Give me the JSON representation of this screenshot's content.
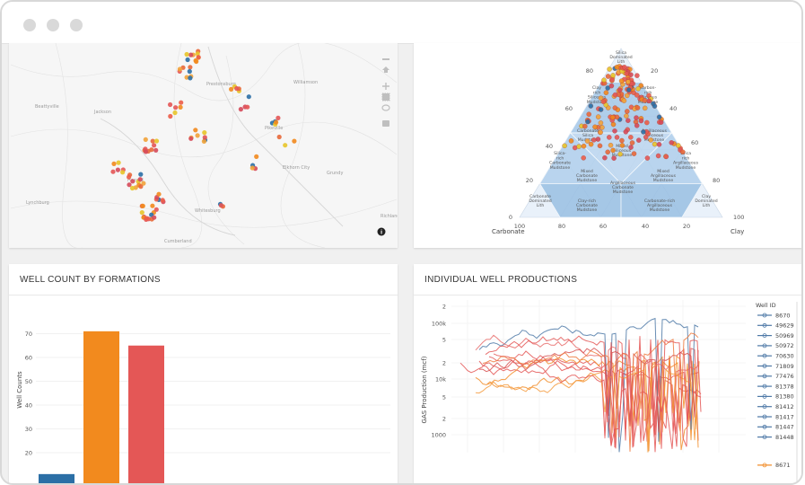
{
  "window": {
    "title": ""
  },
  "map": {
    "places": [
      {
        "name": "Prestonsburg",
        "x": 228,
        "y": 93
      },
      {
        "name": "Williamson",
        "x": 325,
        "y": 91
      },
      {
        "name": "Beattyville",
        "x": 37,
        "y": 118
      },
      {
        "name": "Jackson",
        "x": 103,
        "y": 124
      },
      {
        "name": "Pikeville",
        "x": 293,
        "y": 142
      },
      {
        "name": "Hazard",
        "x": 140,
        "y": 200
      },
      {
        "name": "Elkhorn City",
        "x": 313,
        "y": 186
      },
      {
        "name": "Grundy",
        "x": 362,
        "y": 192
      },
      {
        "name": "Whitesburg",
        "x": 215,
        "y": 234
      },
      {
        "name": "Richlands",
        "x": 422,
        "y": 240
      },
      {
        "name": "Lynchburg",
        "x": 27,
        "y": 225
      },
      {
        "name": "Cumberland",
        "x": 181,
        "y": 268
      }
    ],
    "toolbar_icons": [
      "camera-icon",
      "zoom-in-icon",
      "zoom-out-icon",
      "home-icon",
      "pan-icon",
      "box-select-icon",
      "lasso-icon"
    ],
    "info_icon": "info-icon"
  },
  "ternary": {
    "corner_top": "Silica\nDominated\nLith",
    "corner_left": "Carbonate",
    "corner_right": "Clay",
    "left_ticks": [
      "80",
      "60",
      "40",
      "20",
      "0"
    ],
    "right_ticks": [
      "20",
      "40",
      "60",
      "80",
      "100"
    ],
    "bottom_ticks": [
      "100",
      "80",
      "60",
      "40",
      "20"
    ],
    "regions": [
      {
        "text": "Silica\nDominated\nLith",
        "x": 690,
        "y": 63
      },
      {
        "text": "Clay\nrich\nSiliceous\nMudstone",
        "x": 663,
        "y": 105
      },
      {
        "text": "Carbon-\nrich\nSiliceous\nMudstone",
        "x": 720,
        "y": 105
      },
      {
        "text": "Carbonate\nSilica\nMudstone",
        "x": 653,
        "y": 150
      },
      {
        "text": "Argillaceous\nSiliceous\nMudstone",
        "x": 727,
        "y": 150
      },
      {
        "text": "Mixed\nSiliceous\nMudstone",
        "x": 691,
        "y": 167
      },
      {
        "text": "Silica-\nrich\nCarbonate\nMudstone",
        "x": 622,
        "y": 178
      },
      {
        "text": "Silica\nrich\nArgillaceous\nMudstone",
        "x": 762,
        "y": 178
      },
      {
        "text": "Mixed\nCarbonate\nMudstone",
        "x": 652,
        "y": 195
      },
      {
        "text": "Mixed\nArgillaceous\nMudstone",
        "x": 737,
        "y": 195
      },
      {
        "text": "Argillaceous\nCarbonate\nMudstone",
        "x": 692,
        "y": 208
      },
      {
        "text": "Carbonate\nDominated\nLith",
        "x": 600,
        "y": 223
      },
      {
        "text": "Clay-rich\nCarbonate\nMudstone",
        "x": 652,
        "y": 228
      },
      {
        "text": "Carbonate-rich\nArgillaceous\nMudstone",
        "x": 733,
        "y": 228
      },
      {
        "text": "Clay\nDominated\nLith",
        "x": 785,
        "y": 223
      }
    ]
  },
  "well_count": {
    "title": "WELL COUNT BY FORMATIONS",
    "ylabel": "Well Counts",
    "colors": [
      "#2b6fa6",
      "#f28a1e",
      "#e45756"
    ]
  },
  "productions": {
    "title": "INDIVIDUAL WELL PRODUCTIONS",
    "ylabel": "GAS Production (mcf)",
    "y_ticks": [
      "2",
      "100k",
      "5",
      "2",
      "10k",
      "5",
      "2",
      "1000"
    ],
    "legend_title": "Well ID",
    "well_ids": [
      "8670",
      "49629",
      "50969",
      "50972",
      "70630",
      "71809",
      "77476",
      "81378",
      "81380",
      "81412",
      "81417",
      "81447",
      "81448",
      "8671"
    ],
    "legend_colors": [
      "#4e79a7",
      "#4e79a7",
      "#4e79a7",
      "#4e79a7",
      "#4e79a7",
      "#4e79a7",
      "#4e79a7",
      "#4e79a7",
      "#4e79a7",
      "#4e79a7",
      "#4e79a7",
      "#4e79a7",
      "#4e79a7",
      "#f28e2b"
    ]
  },
  "chart_data": [
    {
      "type": "bar",
      "title": "WELL COUNT BY FORMATIONS",
      "xlabel": "",
      "ylabel": "Well Counts",
      "ylim": [
        10,
        75
      ],
      "y_ticks": [
        20,
        30,
        40,
        50,
        60,
        70
      ],
      "categories": [
        "",
        "",
        ""
      ],
      "values": [
        11,
        71,
        65
      ],
      "grid": true
    },
    {
      "type": "line",
      "title": "INDIVIDUAL WELL PRODUCTIONS",
      "ylabel": "GAS Production (mcf)",
      "scale": "log",
      "series": []
    }
  ]
}
